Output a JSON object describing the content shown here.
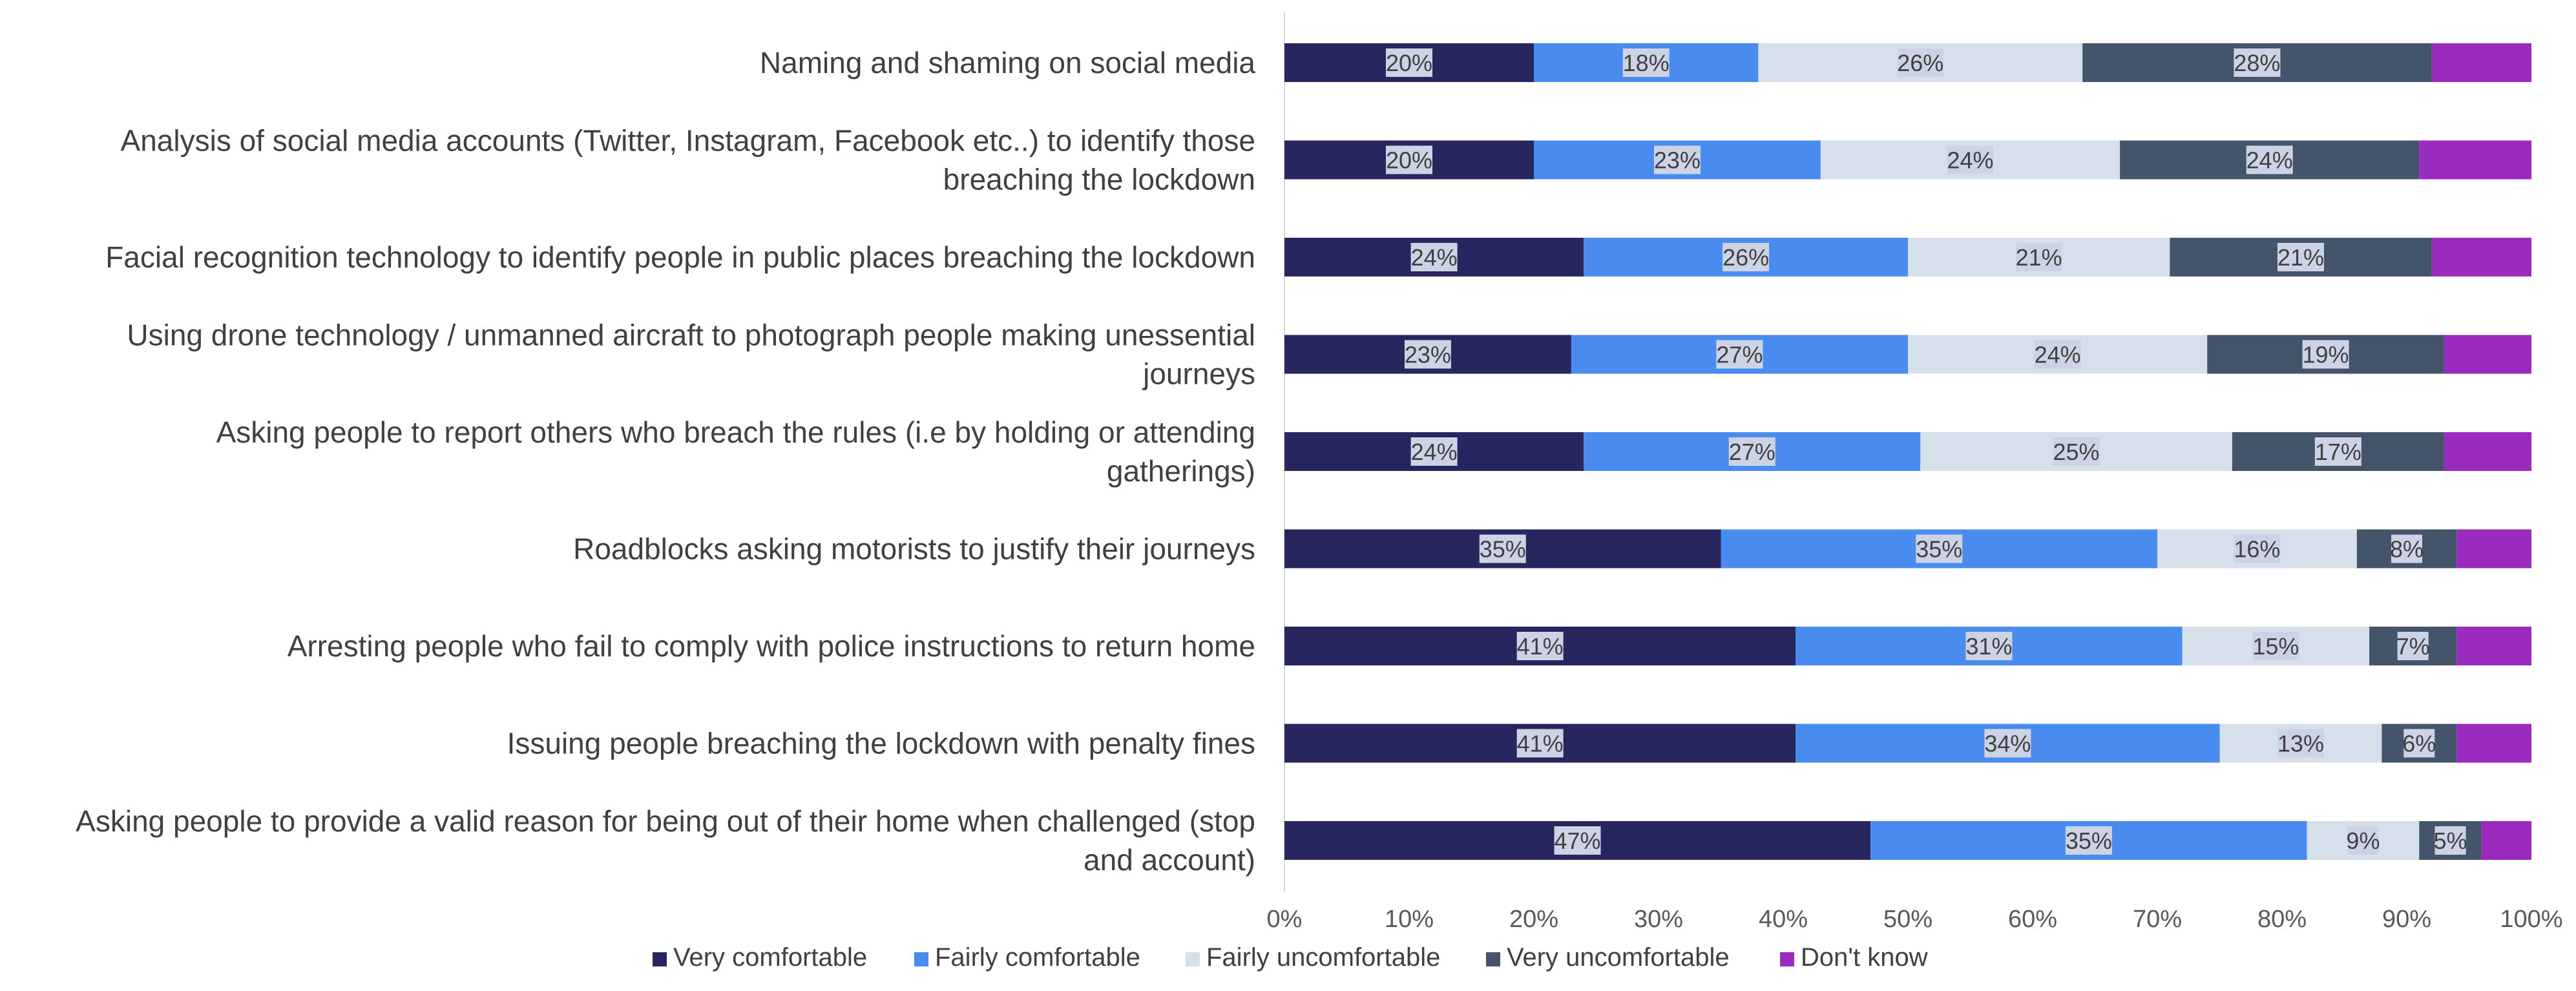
{
  "chart_data": {
    "type": "bar",
    "orientation": "horizontal",
    "stacked": "100%",
    "categories": [
      "Naming and shaming on social media",
      "Analysis of social media accounts (Twitter, Instagram, Facebook etc..) to identify those breaching the lockdown",
      "Facial recognition technology to identify people in public places breaching the lockdown",
      "Using drone technology / unmanned aircraft to photograph people making unessential journeys",
      "Asking people to report others who breach the rules (i.e by holding or attending gatherings)",
      "Roadblocks asking motorists to justify their journeys",
      "Arresting people who fail to comply with police instructions to return home",
      "Issuing people breaching the lockdown with penalty fines",
      "Asking people to provide a valid reason for being out of their home when challenged (stop and account)"
    ],
    "category_lines": [
      [
        "Naming and shaming on social media"
      ],
      [
        "Analysis of social media accounts (Twitter, Instagram, Facebook etc..) to identify those",
        "breaching the lockdown"
      ],
      [
        "Facial recognition technology to identify people in public places breaching the lockdown"
      ],
      [
        "Using drone technology / unmanned aircraft to photograph people making unessential",
        "journeys"
      ],
      [
        "Asking people to report others who breach the rules (i.e by holding or attending",
        "gatherings)"
      ],
      [
        "Roadblocks asking motorists to justify their journeys"
      ],
      [
        "Arresting people who fail to comply with police instructions to return home"
      ],
      [
        "Issuing people breaching the lockdown with penalty fines"
      ],
      [
        "Asking people to provide a valid reason for being out of their home when challenged (stop",
        "and account)"
      ]
    ],
    "series": [
      {
        "name": "Very comfortable",
        "color": "#27265e",
        "values": [
          20,
          20,
          24,
          23,
          24,
          35,
          41,
          41,
          47
        ],
        "labels": [
          "20%",
          "20%",
          "24%",
          "23%",
          "24%",
          "35%",
          "41%",
          "41%",
          "47%"
        ]
      },
      {
        "name": "Fairly comfortable",
        "color": "#4a8bef",
        "values": [
          18,
          23,
          26,
          27,
          27,
          35,
          31,
          34,
          35
        ],
        "labels": [
          "18%",
          "23%",
          "26%",
          "27%",
          "27%",
          "35%",
          "31%",
          "34%",
          "35%"
        ]
      },
      {
        "name": "Fairly uncomfortable",
        "color": "#d6e0ea",
        "values": [
          26,
          24,
          21,
          24,
          25,
          16,
          15,
          13,
          9
        ],
        "labels": [
          "26%",
          "24%",
          "21%",
          "24%",
          "25%",
          "16%",
          "15%",
          "13%",
          "9%"
        ]
      },
      {
        "name": "Very uncomfortable",
        "color": "#44546a",
        "values": [
          28,
          24,
          21,
          19,
          17,
          8,
          7,
          6,
          5
        ],
        "labels": [
          "28%",
          "24%",
          "21%",
          "19%",
          "17%",
          "8%",
          "7%",
          "6%",
          "5%"
        ]
      },
      {
        "name": "Don't know",
        "color": "#9b2bbf",
        "values": [
          8,
          9,
          8,
          7,
          7,
          6,
          6,
          6,
          4
        ],
        "labels": [
          "",
          "",
          "",
          "",
          "",
          "",
          "",
          "",
          ""
        ]
      }
    ],
    "xlim": [
      0,
      100
    ],
    "x_ticks": [
      "0%",
      "10%",
      "20%",
      "30%",
      "40%",
      "50%",
      "60%",
      "70%",
      "80%",
      "90%",
      "100%"
    ],
    "grid": false,
    "legend_position": "bottom",
    "title": "",
    "xlabel": "",
    "ylabel": ""
  }
}
